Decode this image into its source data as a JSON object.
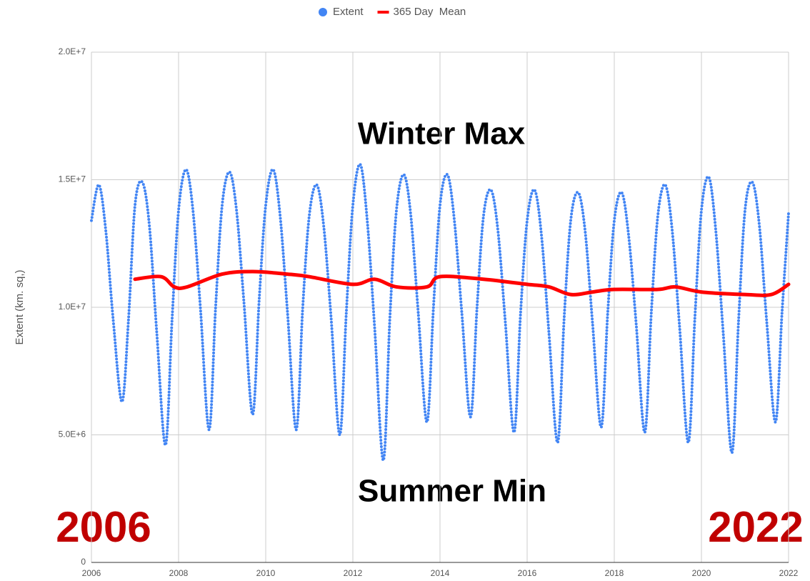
{
  "chart_data": {
    "type": "line",
    "y_label": "Extent (km. sq,)",
    "annotations": [
      "Winter Max",
      "Summer Min",
      "2006",
      "2022"
    ],
    "xlim": [
      2006,
      2022
    ],
    "xticks": [
      2006,
      2008,
      2010,
      2012,
      2014,
      2016,
      2018,
      2020,
      2022
    ],
    "ylim": [
      0,
      20000000
    ],
    "yticks": [
      0,
      {
        "value": 5000000,
        "label": "5.0E+6"
      },
      {
        "value": 10000000,
        "label": "1.0E+7"
      },
      {
        "value": 15000000,
        "label": "1.5E+7"
      },
      {
        "value": 20000000,
        "label": "2.0E+7"
      }
    ],
    "grid": true,
    "legend": "top",
    "series": [
      {
        "name": "Extent",
        "color": "#4285f4",
        "style": "points",
        "x": [
          2006,
          2006.17,
          2006.33,
          2006.5,
          2006.7,
          2006.85,
          2007,
          2007.17,
          2007.33,
          2007.5,
          2007.7,
          2007.85,
          2008,
          2008.17,
          2008.33,
          2008.5,
          2008.7,
          2008.85,
          2009,
          2009.17,
          2009.33,
          2009.5,
          2009.7,
          2009.85,
          2010,
          2010.17,
          2010.33,
          2010.5,
          2010.7,
          2010.85,
          2011,
          2011.17,
          2011.33,
          2011.5,
          2011.7,
          2011.85,
          2012,
          2012.17,
          2012.33,
          2012.5,
          2012.7,
          2012.85,
          2013,
          2013.17,
          2013.33,
          2013.5,
          2013.7,
          2013.85,
          2014,
          2014.17,
          2014.33,
          2014.5,
          2014.7,
          2014.85,
          2015,
          2015.17,
          2015.33,
          2015.5,
          2015.7,
          2015.85,
          2016,
          2016.17,
          2016.33,
          2016.5,
          2016.7,
          2016.85,
          2017,
          2017.17,
          2017.33,
          2017.5,
          2017.7,
          2017.85,
          2018,
          2018.17,
          2018.33,
          2018.5,
          2018.7,
          2018.85,
          2019,
          2019.17,
          2019.33,
          2019.5,
          2019.7,
          2019.85,
          2020,
          2020.17,
          2020.33,
          2020.5,
          2020.7,
          2020.85,
          2021,
          2021.17,
          2021.33,
          2021.5,
          2021.7,
          2021.85,
          2022
        ],
        "values": [
          13400000,
          14800000,
          13000000,
          9500000,
          6300000,
          9500000,
          14000000,
          14900000,
          13200000,
          9000000,
          4600000,
          9500000,
          13800000,
          15400000,
          13800000,
          10000000,
          5200000,
          10000000,
          14000000,
          15300000,
          13800000,
          10200000,
          5800000,
          10300000,
          14000000,
          15400000,
          13600000,
          9800000,
          5200000,
          10000000,
          13600000,
          14800000,
          13200000,
          9600000,
          5000000,
          9800000,
          14000000,
          15600000,
          13400000,
          9200000,
          4000000,
          9600000,
          13800000,
          15200000,
          13600000,
          9800000,
          5500000,
          10000000,
          14000000,
          15200000,
          13400000,
          9800000,
          5700000,
          10000000,
          13600000,
          14600000,
          13000000,
          9400000,
          5100000,
          9800000,
          13400000,
          14600000,
          12800000,
          9000000,
          4700000,
          9600000,
          13400000,
          14500000,
          13000000,
          9400000,
          5300000,
          9800000,
          13400000,
          14500000,
          12800000,
          9400000,
          5100000,
          9800000,
          13600000,
          14800000,
          13000000,
          9200000,
          4700000,
          9600000,
          13800000,
          15100000,
          13000000,
          9000000,
          4300000,
          9400000,
          13800000,
          14900000,
          13200000,
          9400000,
          5500000,
          9800000,
          13700000
        ]
      },
      {
        "name": "365 Day  Mean",
        "color": "#ff0000",
        "style": "line",
        "x": [
          2007,
          2007.6,
          2007.9,
          2008.2,
          2009,
          2009.7,
          2010.5,
          2011,
          2012,
          2012.5,
          2013,
          2013.7,
          2014,
          2015,
          2016,
          2016.5,
          2017,
          2017.5,
          2018,
          2019,
          2019.4,
          2020,
          2021,
          2021.6,
          2022
        ],
        "values": [
          11100000,
          11200000,
          10800000,
          10800000,
          11300000,
          11400000,
          11300000,
          11200000,
          10900000,
          11100000,
          10800000,
          10800000,
          11200000,
          11100000,
          10900000,
          10800000,
          10500000,
          10600000,
          10700000,
          10700000,
          10800000,
          10600000,
          10500000,
          10500000,
          10900000
        ]
      }
    ]
  }
}
